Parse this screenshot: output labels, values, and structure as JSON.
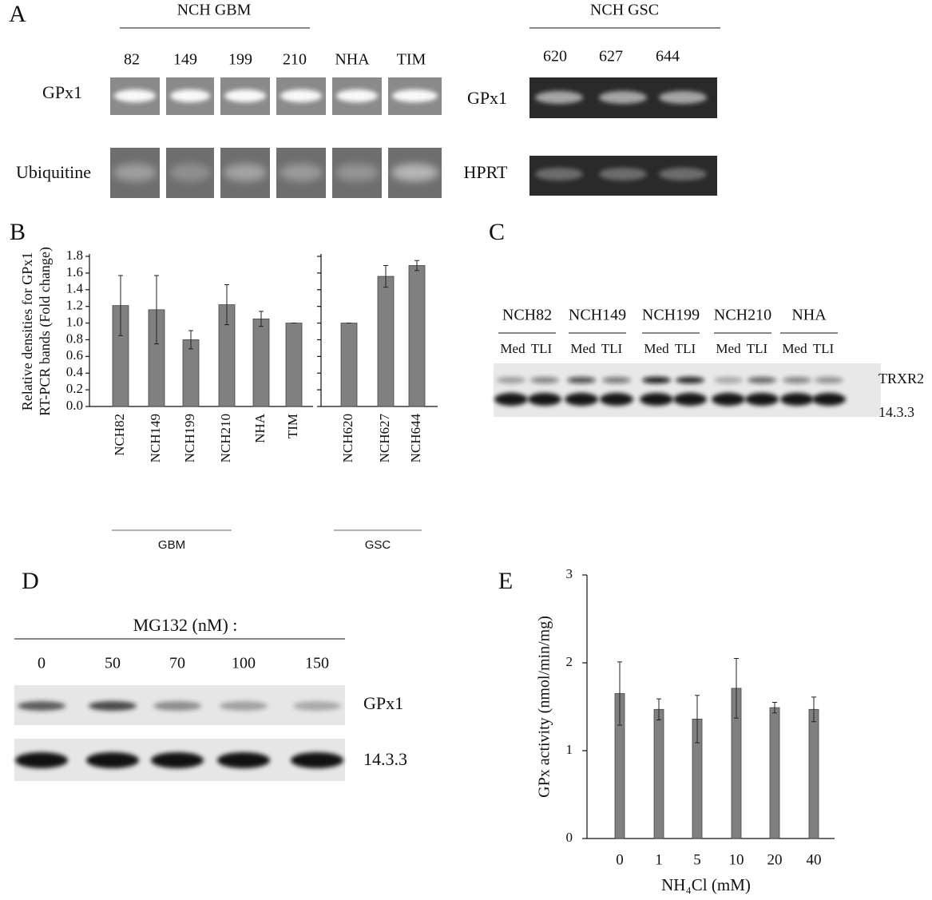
{
  "panel_a": {
    "label": "A",
    "gbm": {
      "title": "NCH GBM",
      "lanes": [
        "82",
        "149",
        "199",
        "210",
        "NHA",
        "TIM"
      ],
      "rows": [
        "GPx1",
        "Ubiquitine"
      ]
    },
    "gsc": {
      "title": "NCH GSC",
      "lanes": [
        "620",
        "627",
        "644"
      ],
      "rows": [
        "GPx1",
        "HPRT"
      ]
    }
  },
  "panel_c": {
    "label": "C",
    "groups": [
      {
        "name": "NCH82",
        "lanes": [
          "Med",
          "TLI"
        ]
      },
      {
        "name": "NCH149",
        "lanes": [
          "Med",
          "TLI"
        ]
      },
      {
        "name": "NCH199",
        "lanes": [
          "Med",
          "TLI"
        ]
      },
      {
        "name": "NCH210",
        "lanes": [
          "Med",
          "TLI"
        ]
      },
      {
        "name": "NHA",
        "lanes": [
          "Med",
          "TLI"
        ]
      }
    ],
    "rows": [
      "TRXR2",
      "14.3.3"
    ]
  },
  "panel_d": {
    "label": "D",
    "title": "MG132 (nM) :",
    "lanes": [
      "0",
      "50",
      "70",
      "100",
      "150"
    ],
    "rows": [
      "GPx1",
      "14.3.3"
    ]
  },
  "chart_data": [
    {
      "type": "bar",
      "panel_label": "B",
      "ylabel": [
        "Relative densities for GPx1",
        "RT-PCR bands  (Fold change)"
      ],
      "ylim": [
        0,
        1.8
      ],
      "yticks": [
        {
          "value": 0,
          "label": "0.0"
        },
        0.2,
        0.4,
        0.6,
        0.8,
        {
          "value": 1,
          "label": "1.0"
        },
        1.2,
        1.4,
        1.6,
        1.8
      ],
      "color": "#808080",
      "groups": [
        {
          "label": "GBM",
          "categories": [
            "NCH82",
            "NCH149",
            "NCH199",
            "NCH210",
            "NHA",
            "TIM"
          ],
          "values": [
            1.21,
            1.16,
            0.8,
            1.22,
            1.05,
            1.0
          ],
          "errors": [
            0.36,
            0.41,
            0.11,
            0.24,
            0.09,
            0
          ]
        },
        {
          "label": "GSC",
          "categories": [
            "NCH620",
            "NCH627",
            "NCH644"
          ],
          "values": [
            1.0,
            1.56,
            1.69
          ],
          "errors": [
            0,
            0.13,
            0.06
          ]
        }
      ]
    },
    {
      "type": "bar",
      "panel_label": "E",
      "ylabel": "GPx activity (nmol/min/mg)",
      "xlabel": "NH₄Cl (mM)",
      "ylim": [
        0,
        3
      ],
      "yticks": [
        0,
        1,
        2,
        3
      ],
      "color": "#808080",
      "categories": [
        "0",
        "1",
        "5",
        "10",
        "20",
        "40"
      ],
      "values": [
        1.65,
        1.47,
        1.36,
        1.71,
        1.49,
        1.47
      ],
      "errors": [
        0.36,
        0.12,
        0.27,
        0.34,
        0.06,
        0.14
      ]
    }
  ]
}
